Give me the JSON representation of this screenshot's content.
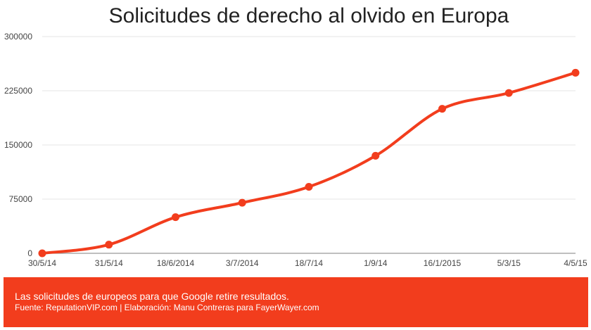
{
  "chart_data": {
    "type": "line",
    "title": "Solicitudes de derecho al olvido en Europa",
    "xlabel": "",
    "ylabel": "",
    "categories": [
      "30/5/14",
      "31/5/14",
      "18/6/2014",
      "3/7/2014",
      "18/7/14",
      "1/9/14",
      "16/1/2015",
      "5/3/15",
      "4/5/15"
    ],
    "series": [
      {
        "values": [
          0,
          12000,
          50000,
          70000,
          92000,
          135000,
          200000,
          222000,
          250000
        ]
      }
    ],
    "ylim": [
      0,
      300000
    ],
    "yticks": [
      "0",
      "75000",
      "150000",
      "225000",
      "300000"
    ],
    "grid": true,
    "line_color": "#f23d1d"
  },
  "footer": {
    "description": "Las solicitudes de europeos para que Google retire resultados.",
    "source": "Fuente: ReputationVIP.com | Elaboración: Manu Contreras para FayerWayer.com"
  }
}
